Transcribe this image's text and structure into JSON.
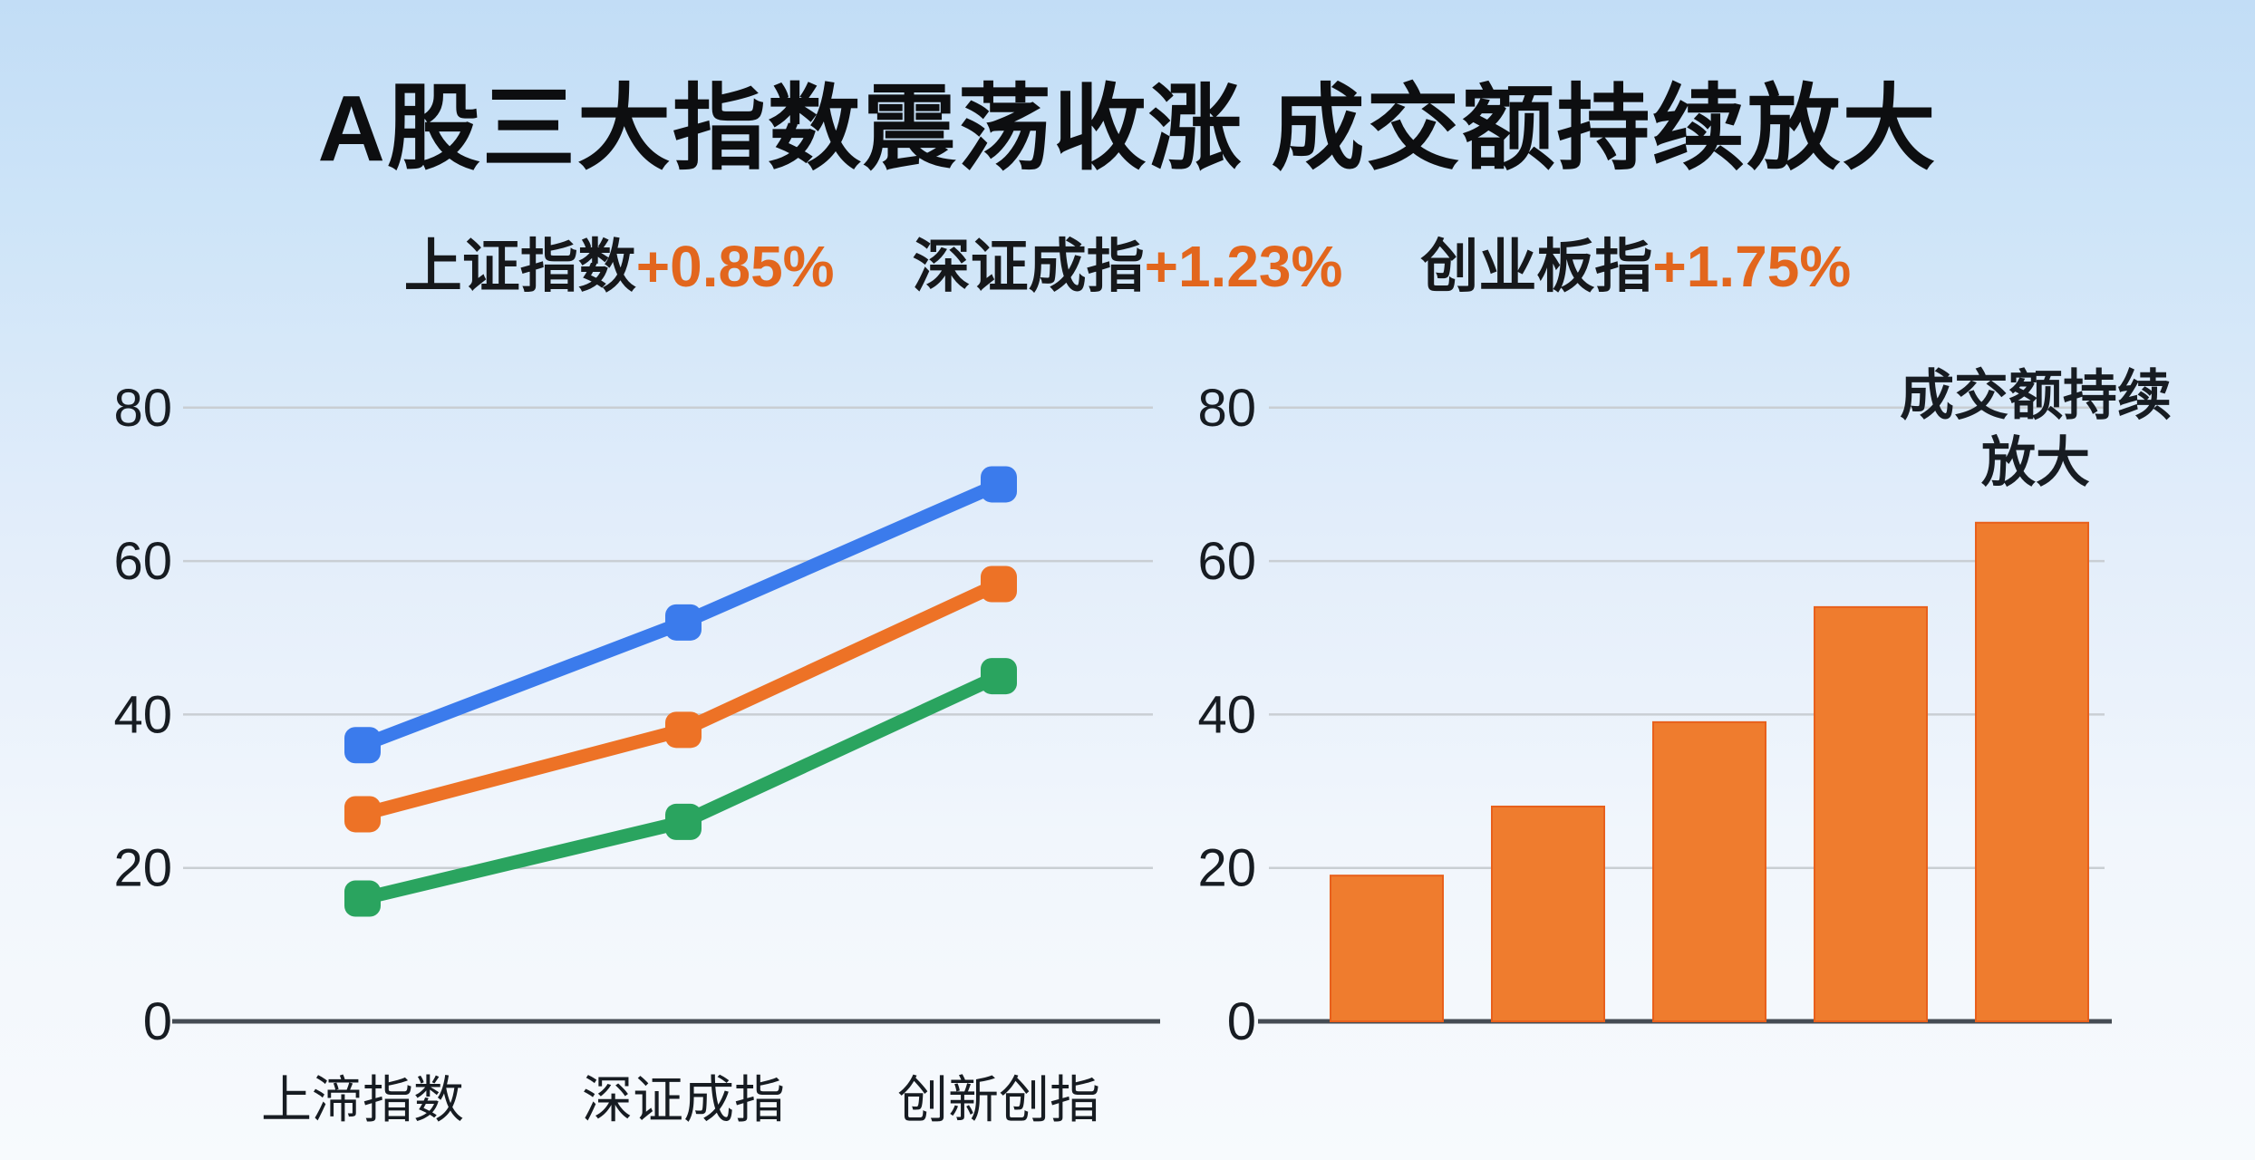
{
  "title": "A股三大指数震荡收涨 成交额持续放大",
  "subtitle": {
    "items": [
      {
        "label": "上证指数",
        "value": "+0.85%"
      },
      {
        "label": "深证成指",
        "value": "+1.23%"
      },
      {
        "label": "创业板指",
        "value": "+1.75%"
      }
    ]
  },
  "colors": {
    "accent_orange": "#e2661d",
    "line_blue": "#3b7bec",
    "line_orange": "#ed7226",
    "line_green": "#2aa45f",
    "bar_fill": "#ef7c2e",
    "bar_edge": "#e8601c",
    "gridline": "#c9ced3",
    "axis_line": "#454c54",
    "text_dark": "#171c22"
  },
  "chart_data": [
    {
      "type": "line",
      "title": "",
      "categories": [
        "上渧指数",
        "深证成指",
        "创新创指"
      ],
      "series": [
        {
          "name": "blue-line",
          "color": "#3b7bec",
          "values": [
            36,
            52,
            70
          ]
        },
        {
          "name": "orange-line",
          "color": "#ed7226",
          "values": [
            27,
            38,
            57
          ]
        },
        {
          "name": "green-line",
          "color": "#2aa45f",
          "values": [
            16,
            26,
            45
          ]
        }
      ],
      "ylim": [
        0,
        80
      ],
      "yticks": [
        0,
        20,
        40,
        60,
        80
      ],
      "grid": true,
      "legend": "none"
    },
    {
      "type": "bar",
      "title": "",
      "values": [
        19,
        28,
        39,
        54,
        65
      ],
      "ylim": [
        0,
        80
      ],
      "yticks": [
        0,
        20,
        40,
        60,
        80
      ],
      "grid": true,
      "legend": "none",
      "annotation": {
        "lines": [
          "成交额持续",
          "放大"
        ]
      }
    }
  ]
}
